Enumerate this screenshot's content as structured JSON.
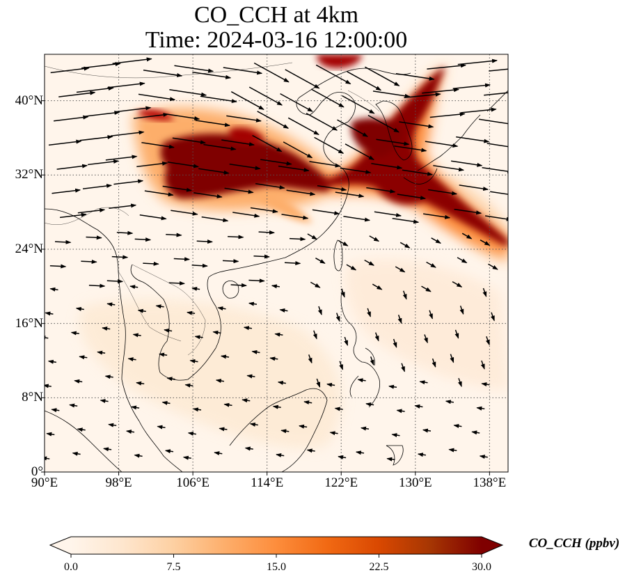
{
  "title": {
    "line1": "CO_CCH at 4km",
    "line2": "Time: 2024-03-16 12:00:00"
  },
  "map": {
    "extent_lon": [
      90,
      140
    ],
    "extent_lat": [
      0,
      45
    ],
    "lon_ticks": [
      {
        "value": 90,
        "label": "90°E"
      },
      {
        "value": 98,
        "label": "98°E"
      },
      {
        "value": 106,
        "label": "106°E"
      },
      {
        "value": 114,
        "label": "114°E"
      },
      {
        "value": 122,
        "label": "122°E"
      },
      {
        "value": 130,
        "label": "130°E"
      },
      {
        "value": 138,
        "label": "138°E"
      }
    ],
    "lat_ticks": [
      {
        "value": 0,
        "label": "0°"
      },
      {
        "value": 8,
        "label": "8°N"
      },
      {
        "value": 16,
        "label": "16°N"
      },
      {
        "value": 24,
        "label": "24°N"
      },
      {
        "value": 32,
        "label": "32°N"
      },
      {
        "value": 40,
        "label": "40°N"
      }
    ],
    "gridlines": "dotted",
    "background_color": "#fff5eb",
    "colormap": [
      "#fff5eb",
      "#fee6ce",
      "#fdd0a2",
      "#fdae6b",
      "#fd8d3c",
      "#f16913",
      "#d94801",
      "#a63603",
      "#7f0000"
    ]
  },
  "colorbar": {
    "label": "CO_CCH (ppbv)",
    "min": 0,
    "max": 30,
    "ticks": [
      "0.0",
      "7.5",
      "15.0",
      "22.5",
      "30.0"
    ],
    "extend": "both"
  }
}
